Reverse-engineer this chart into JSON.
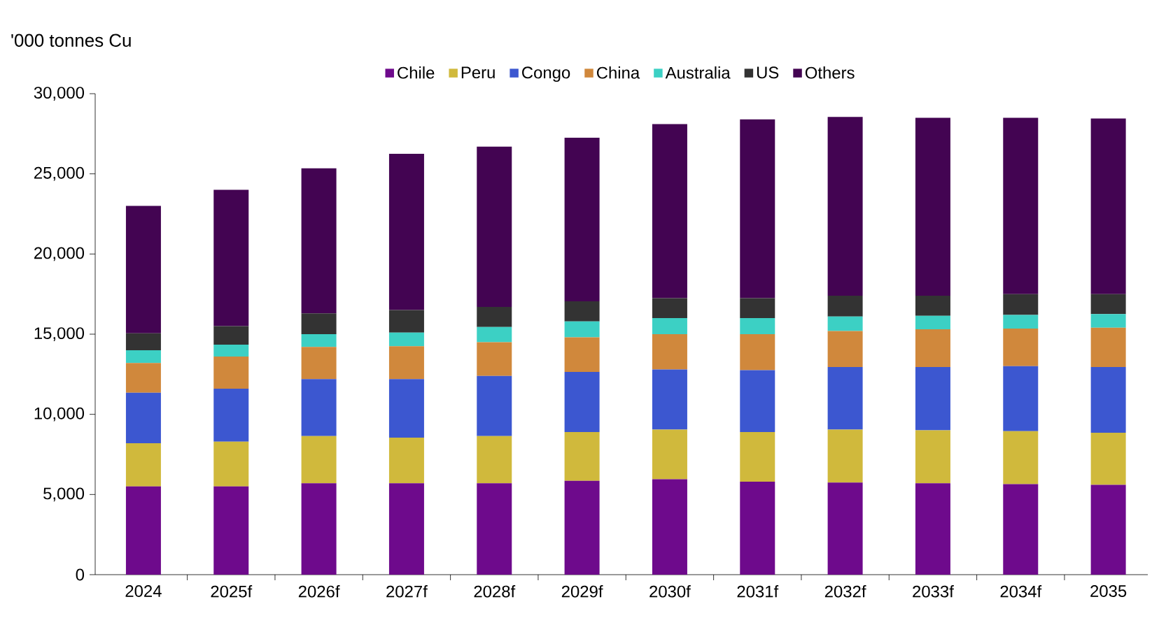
{
  "chart_data": {
    "type": "bar",
    "stacked": true,
    "ylabel": "'000 tonnes Cu",
    "categories": [
      "2024",
      "2025f",
      "2026f",
      "2027f",
      "2028f",
      "2029f",
      "2030f",
      "2031f",
      "2032f",
      "2033f",
      "2034f",
      "2035"
    ],
    "series": [
      {
        "name": "Chile",
        "color": "#6e0a8c",
        "values": [
          5500,
          5500,
          5700,
          5700,
          5700,
          5850,
          5950,
          5800,
          5750,
          5700,
          5650,
          5600
        ]
      },
      {
        "name": "Peru",
        "color": "#d0b93c",
        "values": [
          2700,
          2800,
          2950,
          2850,
          2950,
          3050,
          3100,
          3100,
          3300,
          3300,
          3300,
          3250
        ]
      },
      {
        "name": "Congo",
        "color": "#3c57d0",
        "values": [
          3150,
          3300,
          3550,
          3650,
          3750,
          3750,
          3750,
          3850,
          3900,
          3950,
          4050,
          4100
        ]
      },
      {
        "name": "China",
        "color": "#d0883c",
        "values": [
          1850,
          2000,
          2000,
          2050,
          2100,
          2150,
          2200,
          2250,
          2250,
          2350,
          2350,
          2450
        ]
      },
      {
        "name": "Australia",
        "color": "#3cd0c4",
        "values": [
          800,
          750,
          800,
          850,
          950,
          1000,
          1000,
          1000,
          900,
          850,
          850,
          850
        ]
      },
      {
        "name": "US",
        "color": "#333333",
        "values": [
          1050,
          1150,
          1300,
          1400,
          1250,
          1250,
          1250,
          1250,
          1300,
          1250,
          1300,
          1250
        ]
      },
      {
        "name": "Others",
        "color": "#430452",
        "values": [
          7950,
          8500,
          9050,
          9750,
          10000,
          10200,
          10850,
          11150,
          11150,
          11100,
          11000,
          10950
        ]
      }
    ],
    "ylim": [
      0,
      30000
    ],
    "yticks": [
      0,
      {
        "value": 5000,
        "label": "5,000"
      },
      {
        "value": 10000,
        "label": "10,000"
      },
      {
        "value": 15000,
        "label": "15,000"
      },
      {
        "value": 20000,
        "label": "20,000"
      },
      {
        "value": 25000,
        "label": "25,000"
      },
      {
        "value": 30000,
        "label": "30,000"
      }
    ],
    "legend": "top",
    "grid": false
  }
}
